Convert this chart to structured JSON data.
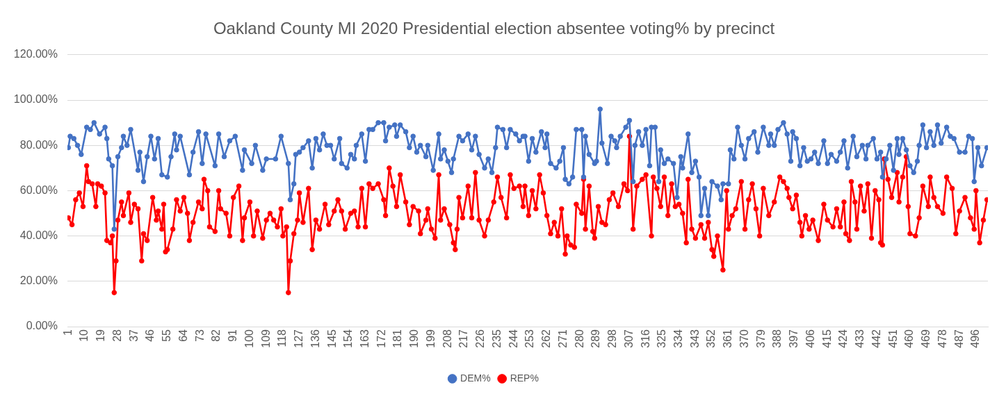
{
  "chart_data": {
    "type": "line",
    "title": "Oakland County MI 2020 Presidential election absentee voting% by precinct",
    "xlim": [
      0.5,
      502.5
    ],
    "xticks": [
      1,
      10,
      19,
      28,
      37,
      46,
      55,
      64,
      73,
      82,
      91,
      100,
      109,
      118,
      127,
      136,
      145,
      154,
      163,
      172,
      181,
      190,
      199,
      208,
      217,
      226,
      235,
      244,
      253,
      262,
      271,
      280,
      289,
      298,
      307,
      316,
      325,
      334,
      343,
      352,
      361,
      370,
      379,
      388,
      397,
      406,
      415,
      424,
      433,
      442,
      451,
      460,
      469,
      478,
      487,
      496
    ],
    "ylim": [
      0,
      120
    ],
    "yticks": [
      {
        "value": 0,
        "label": "0.00%"
      },
      {
        "value": 20,
        "label": "20.00%"
      },
      {
        "value": 40,
        "label": "40.00%"
      },
      {
        "value": 60,
        "label": "60.00%"
      },
      {
        "value": 80,
        "label": "80.00%"
      },
      {
        "value": 100,
        "label": "100.00%"
      },
      {
        "value": 120,
        "label": "120.00%"
      }
    ],
    "grid": "y",
    "legend": "bottom",
    "marker": "circle",
    "series": [
      {
        "name": "DEM%",
        "color": "#4472c4",
        "x": [
          1,
          2,
          4,
          6,
          8,
          11,
          13,
          15,
          18,
          21,
          22,
          23,
          25,
          26,
          28,
          30,
          31,
          33,
          35,
          39,
          40,
          42,
          44,
          46,
          48,
          50,
          52,
          55,
          57,
          59,
          60,
          62,
          67,
          69,
          72,
          74,
          76,
          81,
          83,
          86,
          89,
          92,
          96,
          97,
          101,
          103,
          107,
          109,
          114,
          117,
          121,
          122,
          124,
          125,
          127,
          129,
          132,
          134,
          136,
          138,
          140,
          142,
          144,
          146,
          149,
          150,
          153,
          155,
          157,
          158,
          161,
          163,
          165,
          167,
          170,
          173,
          174,
          176,
          179,
          180,
          182,
          185,
          187,
          189,
          191,
          193,
          196,
          197,
          200,
          203,
          204,
          206,
          208,
          210,
          211,
          214,
          216,
          219,
          221,
          223,
          225,
          228,
          230,
          232,
          234,
          235,
          238,
          240,
          242,
          245,
          247,
          249,
          250,
          252,
          254,
          256,
          259,
          261,
          262,
          264,
          267,
          269,
          271,
          272,
          274,
          276,
          278,
          281,
          282,
          283,
          285,
          288,
          289,
          291,
          292,
          295,
          297,
          299,
          300,
          302,
          305,
          307,
          309,
          310,
          312,
          314,
          316,
          318,
          319,
          321,
          323,
          324,
          326,
          328,
          331,
          333,
          335,
          336,
          339,
          341,
          343,
          345,
          346,
          348,
          350,
          352,
          355,
          357,
          358,
          361,
          362,
          364,
          366,
          368,
          370,
          372,
          375,
          377,
          380,
          383,
          384,
          386,
          388,
          391,
          393,
          395,
          396,
          398,
          400,
          402,
          404,
          406,
          408,
          410,
          413,
          415,
          417,
          420,
          422,
          424,
          426,
          429,
          431,
          434,
          436,
          437,
          440,
          442,
          444,
          445,
          447,
          449,
          451,
          453,
          454,
          456,
          458,
          460,
          462,
          464,
          465,
          467,
          469,
          471,
          473,
          475,
          477,
          480,
          482,
          484,
          487,
          490,
          492,
          494,
          495,
          497,
          499,
          502
        ],
        "values": [
          79,
          84,
          83,
          80,
          76,
          88,
          87,
          90,
          85,
          88,
          83,
          74,
          71,
          43,
          75,
          79,
          84,
          80,
          87,
          69,
          77,
          64,
          75,
          84,
          74,
          83,
          67,
          66,
          75,
          85,
          78,
          84,
          67,
          77,
          86,
          72,
          85,
          71,
          85,
          75,
          82,
          84,
          69,
          78,
          72,
          80,
          69,
          74,
          74,
          84,
          72,
          56,
          63,
          76,
          77,
          79,
          82,
          70,
          83,
          78,
          85,
          80,
          80,
          74,
          83,
          72,
          70,
          76,
          74,
          80,
          85,
          73,
          87,
          87,
          90,
          90,
          82,
          88,
          89,
          84,
          89,
          86,
          79,
          84,
          77,
          80,
          75,
          80,
          69,
          85,
          74,
          78,
          73,
          68,
          74,
          84,
          82,
          85,
          78,
          84,
          76,
          70,
          74,
          68,
          79,
          88,
          87,
          79,
          87,
          85,
          82,
          84,
          84,
          73,
          83,
          77,
          86,
          79,
          85,
          72,
          70,
          73,
          79,
          65,
          63,
          66,
          87,
          87,
          66,
          84,
          76,
          72,
          73,
          96,
          81,
          72,
          84,
          82,
          79,
          84,
          88,
          91,
          64,
          80,
          86,
          80,
          87,
          71,
          88,
          88,
          64,
          78,
          72,
          74,
          72,
          57,
          75,
          70,
          85,
          68,
          73,
          66,
          49,
          61,
          49,
          64,
          62,
          56,
          63,
          63,
          78,
          74,
          88,
          80,
          74,
          83,
          86,
          77,
          88,
          80,
          85,
          80,
          87,
          90,
          85,
          73,
          86,
          83,
          71,
          79,
          73,
          74,
          77,
          72,
          82,
          72,
          76,
          73,
          77,
          82,
          70,
          84,
          75,
          80,
          74,
          80,
          83,
          74,
          77,
          66,
          74,
          80,
          69,
          83,
          76,
          83,
          78,
          71,
          68,
          73,
          80,
          89,
          79,
          86,
          80,
          89,
          81,
          88,
          84,
          83,
          77,
          77,
          84,
          83,
          64,
          79,
          71,
          79
        ]
      },
      {
        "name": "REP%",
        "color": "#ff0000",
        "x": [
          1,
          3,
          5,
          7,
          9,
          11,
          12,
          14,
          16,
          17,
          19,
          21,
          22,
          24,
          25,
          26,
          27,
          28,
          30,
          31,
          34,
          35,
          37,
          39,
          41,
          42,
          44,
          47,
          49,
          50,
          52,
          53,
          54,
          55,
          58,
          60,
          62,
          64,
          66,
          67,
          69,
          72,
          74,
          75,
          77,
          78,
          81,
          83,
          84,
          87,
          89,
          91,
          94,
          96,
          97,
          100,
          102,
          104,
          107,
          109,
          111,
          113,
          115,
          117,
          118,
          120,
          121,
          122,
          124,
          126,
          127,
          129,
          132,
          134,
          136,
          138,
          141,
          143,
          146,
          148,
          150,
          152,
          155,
          157,
          159,
          161,
          163,
          165,
          167,
          170,
          173,
          174,
          176,
          178,
          180,
          182,
          185,
          187,
          189,
          192,
          193,
          196,
          197,
          199,
          201,
          203,
          204,
          206,
          209,
          211,
          212,
          213,
          214,
          216,
          219,
          221,
          223,
          225,
          228,
          230,
          233,
          235,
          237,
          240,
          242,
          244,
          247,
          249,
          250,
          252,
          254,
          256,
          258,
          260,
          262,
          264,
          266,
          268,
          270,
          272,
          273,
          275,
          277,
          278,
          281,
          282,
          283,
          285,
          287,
          288,
          290,
          292,
          294,
          296,
          298,
          301,
          304,
          306,
          307,
          309,
          311,
          314,
          316,
          319,
          320,
          322,
          324,
          326,
          328,
          330,
          332,
          334,
          336,
          338,
          339,
          341,
          343,
          346,
          348,
          350,
          352,
          353,
          355,
          358,
          360,
          361,
          363,
          365,
          368,
          370,
          372,
          374,
          376,
          378,
          380,
          383,
          386,
          389,
          391,
          393,
          394,
          396,
          398,
          400,
          401,
          403,
          405,
          407,
          410,
          413,
          415,
          418,
          420,
          422,
          424,
          425,
          427,
          428,
          430,
          431,
          433,
          435,
          437,
          439,
          441,
          443,
          444,
          445,
          446,
          448,
          450,
          453,
          454,
          456,
          458,
          459,
          460,
          463,
          465,
          467,
          470,
          471,
          473,
          475,
          478,
          480,
          483,
          485,
          487,
          490,
          493,
          495,
          496,
          498,
          500,
          502
        ],
        "values": [
          48,
          45,
          56,
          59,
          53,
          71,
          64,
          63,
          53,
          63,
          62,
          59,
          38,
          37,
          40,
          15,
          29,
          47,
          55,
          49,
          59,
          46,
          54,
          52,
          29,
          41,
          38,
          57,
          47,
          51,
          43,
          54,
          33,
          34,
          43,
          56,
          51,
          57,
          50,
          38,
          46,
          55,
          52,
          65,
          60,
          44,
          42,
          60,
          52,
          50,
          40,
          57,
          62,
          38,
          48,
          55,
          40,
          51,
          39,
          47,
          50,
          47,
          44,
          52,
          40,
          44,
          15,
          29,
          41,
          47,
          59,
          46,
          61,
          34,
          47,
          43,
          54,
          45,
          51,
          56,
          51,
          43,
          50,
          51,
          44,
          61,
          44,
          63,
          61,
          63,
          56,
          49,
          70,
          62,
          53,
          67,
          55,
          45,
          53,
          51,
          41,
          47,
          52,
          43,
          39,
          67,
          47,
          52,
          45,
          37,
          34,
          43,
          57,
          48,
          62,
          48,
          68,
          47,
          40,
          47,
          55,
          66,
          57,
          48,
          67,
          61,
          62,
          53,
          62,
          49,
          60,
          52,
          67,
          59,
          49,
          41,
          46,
          40,
          52,
          32,
          40,
          36,
          35,
          54,
          50,
          65,
          43,
          62,
          42,
          39,
          53,
          46,
          45,
          56,
          59,
          53,
          63,
          60,
          84,
          43,
          62,
          65,
          67,
          40,
          66,
          61,
          53,
          66,
          49,
          63,
          53,
          54,
          50,
          37,
          65,
          43,
          39,
          45,
          39,
          46,
          34,
          31,
          40,
          25,
          60,
          43,
          49,
          52,
          64,
          43,
          56,
          63,
          52,
          40,
          61,
          49,
          55,
          66,
          64,
          61,
          57,
          52,
          58,
          46,
          40,
          49,
          43,
          47,
          38,
          54,
          47,
          44,
          52,
          44,
          55,
          41,
          38,
          64,
          55,
          43,
          62,
          51,
          63,
          39,
          60,
          56,
          37,
          36,
          74,
          65,
          57,
          68,
          55,
          66,
          75,
          53,
          41,
          40,
          48,
          62,
          53,
          66,
          57,
          53,
          50,
          66,
          61,
          41,
          51,
          57,
          48,
          43,
          60,
          37,
          47,
          56
        ]
      }
    ]
  }
}
